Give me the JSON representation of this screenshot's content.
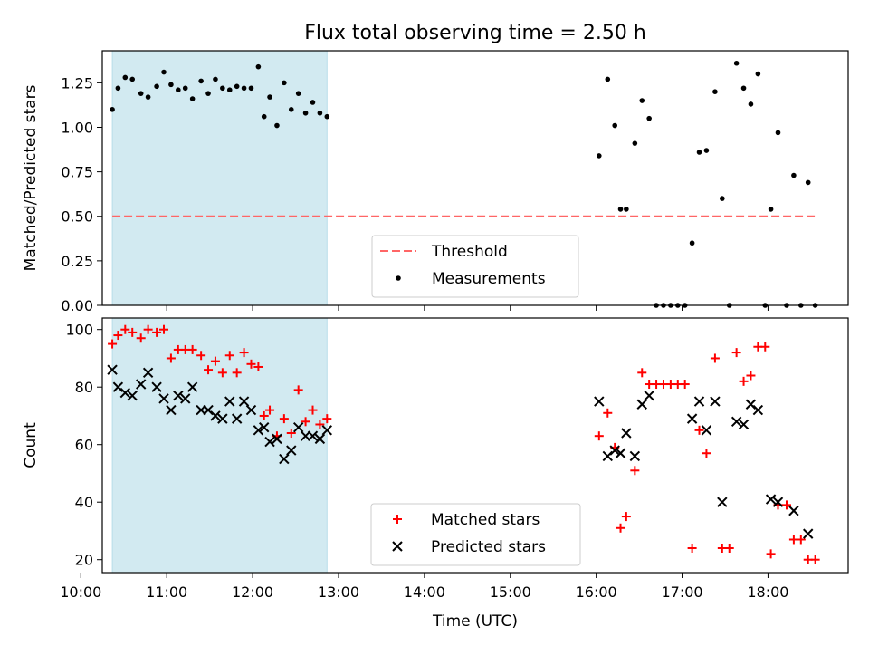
{
  "figure": {
    "title": "Flux total observing time = 2.50 h",
    "xlabel": "Time (UTC)"
  },
  "chart_data": [
    {
      "type": "scatter",
      "ylabel": "Matched/Predicted stars",
      "xlim": [
        "10:15",
        "18:56"
      ],
      "ylim": [
        0,
        1.43
      ],
      "x_ticks": [
        "10:00",
        "11:00",
        "12:00",
        "13:00",
        "14:00",
        "15:00",
        "16:00",
        "17:00",
        "18:00"
      ],
      "y_ticks": [
        "0.00",
        "0.25",
        "0.50",
        "0.75",
        "1.00",
        "1.25"
      ],
      "shaded_span": {
        "x": [
          "10:22",
          "12:52"
        ],
        "color": "#add8e6"
      },
      "threshold": {
        "name": "Threshold",
        "y": 0.5,
        "x": [
          "10:22",
          "18:33"
        ],
        "color": "#ff6666"
      },
      "legend": {
        "position": "lower-center",
        "entries": [
          "Threshold",
          "Measurements"
        ]
      },
      "series": [
        {
          "name": "Measurements",
          "color": "#000000",
          "marker": "dot",
          "x": [
            "10:22",
            "10:26",
            "10:31",
            "10:36",
            "10:42",
            "10:47",
            "10:53",
            "10:58",
            "11:03",
            "11:08",
            "11:13",
            "11:18",
            "11:24",
            "11:29",
            "11:34",
            "11:39",
            "11:44",
            "11:49",
            "11:54",
            "11:59",
            "12:04",
            "12:08",
            "12:12",
            "12:17",
            "12:22",
            "12:27",
            "12:32",
            "12:37",
            "12:42",
            "12:47",
            "12:52",
            "16:02",
            "16:08",
            "16:13",
            "16:17",
            "16:21",
            "16:27",
            "16:32",
            "16:37",
            "16:42",
            "16:47",
            "16:52",
            "16:57",
            "17:02",
            "17:07",
            "17:12",
            "17:17",
            "17:23",
            "17:28",
            "17:33",
            "17:38",
            "17:43",
            "17:48",
            "17:53",
            "17:58",
            "18:02",
            "18:07",
            "18:13",
            "18:18",
            "18:23",
            "18:28",
            "18:33"
          ],
          "y": [
            1.1,
            1.22,
            1.28,
            1.27,
            1.19,
            1.17,
            1.23,
            1.31,
            1.24,
            1.21,
            1.22,
            1.16,
            1.26,
            1.19,
            1.27,
            1.22,
            1.21,
            1.23,
            1.22,
            1.22,
            1.34,
            1.06,
            1.17,
            1.01,
            1.25,
            1.1,
            1.19,
            1.08,
            1.14,
            1.08,
            1.06,
            0.84,
            1.27,
            1.01,
            0.54,
            0.54,
            0.91,
            1.15,
            1.05,
            0,
            0,
            0,
            0,
            0,
            0.35,
            0.86,
            0.87,
            1.2,
            0.6,
            0,
            1.36,
            1.22,
            1.13,
            1.3,
            0,
            0.54,
            0.97,
            0,
            0.73,
            0,
            0.69,
            0
          ]
        }
      ]
    },
    {
      "type": "scatter",
      "ylabel": "Count",
      "xlim": [
        "10:15",
        "18:56"
      ],
      "ylim": [
        15.5,
        104
      ],
      "x_ticks": [
        "10:00",
        "11:00",
        "12:00",
        "13:00",
        "14:00",
        "15:00",
        "16:00",
        "17:00",
        "18:00"
      ],
      "y_ticks": [
        "20",
        "40",
        "60",
        "80",
        "100"
      ],
      "shaded_span": {
        "x": [
          "10:22",
          "12:52"
        ],
        "color": "#add8e6"
      },
      "legend": {
        "position": "lower-center",
        "entries": [
          "Matched stars",
          "Predicted stars"
        ]
      },
      "series": [
        {
          "name": "Matched stars",
          "color": "#ff0000",
          "marker": "plus",
          "x": [
            "10:22",
            "10:26",
            "10:31",
            "10:36",
            "10:42",
            "10:47",
            "10:53",
            "10:58",
            "11:03",
            "11:08",
            "11:13",
            "11:18",
            "11:24",
            "11:29",
            "11:34",
            "11:39",
            "11:44",
            "11:49",
            "11:54",
            "11:59",
            "12:04",
            "12:08",
            "12:12",
            "12:17",
            "12:22",
            "12:27",
            "12:32",
            "12:37",
            "12:42",
            "12:47",
            "12:52",
            "16:02",
            "16:08",
            "16:13",
            "16:17",
            "16:21",
            "16:27",
            "16:32",
            "16:37",
            "16:42",
            "16:47",
            "16:52",
            "16:57",
            "17:02",
            "17:07",
            "17:12",
            "17:17",
            "17:23",
            "17:28",
            "17:33",
            "17:38",
            "17:43",
            "17:48",
            "17:53",
            "17:58",
            "18:02",
            "18:07",
            "18:13",
            "18:18",
            "18:23",
            "18:28",
            "18:33"
          ],
          "y": [
            95,
            98,
            100,
            99,
            97,
            100,
            99,
            100,
            90,
            93,
            93,
            93,
            91,
            86,
            89,
            85,
            91,
            85,
            92,
            88,
            87,
            70,
            72,
            63,
            69,
            64,
            79,
            68,
            72,
            67,
            69,
            63,
            71,
            59,
            31,
            35,
            51,
            85,
            81,
            81,
            81,
            81,
            81,
            81,
            24,
            65,
            57,
            90,
            24,
            24,
            92,
            82,
            84,
            94,
            94,
            22,
            39,
            39,
            27,
            27,
            20,
            20
          ]
        },
        {
          "name": "Predicted stars",
          "color": "#000000",
          "marker": "x",
          "x": [
            "10:22",
            "10:26",
            "10:31",
            "10:36",
            "10:42",
            "10:47",
            "10:53",
            "10:58",
            "11:03",
            "11:08",
            "11:13",
            "11:18",
            "11:24",
            "11:29",
            "11:34",
            "11:39",
            "11:44",
            "11:49",
            "11:54",
            "11:59",
            "12:04",
            "12:08",
            "12:12",
            "12:17",
            "12:22",
            "12:27",
            "12:32",
            "12:37",
            "12:42",
            "12:47",
            "12:52",
            "16:02",
            "16:08",
            "16:13",
            "16:17",
            "16:21",
            "16:27",
            "16:32",
            "16:37",
            "16:42",
            "16:47",
            "16:52",
            "16:57",
            "17:02",
            "17:07",
            "17:12",
            "17:17",
            "17:23",
            "17:28",
            "17:33",
            "17:38",
            "17:43",
            "17:48",
            "17:53",
            "17:58",
            "18:02",
            "18:07",
            "18:13",
            "18:18",
            "18:23",
            "18:28",
            "18:33"
          ],
          "y": [
            86,
            80,
            78,
            77,
            81,
            85,
            80,
            76,
            72,
            77,
            76,
            80,
            72,
            72,
            70,
            69,
            75,
            69,
            75,
            72,
            65,
            66,
            61,
            62,
            55,
            58,
            66,
            63,
            63,
            62,
            65,
            75,
            56,
            58,
            57,
            64,
            56,
            74,
            77,
            null,
            null,
            null,
            null,
            null,
            69,
            75,
            65,
            75,
            40,
            null,
            68,
            67,
            74,
            72,
            null,
            41,
            40,
            null,
            37,
            null,
            29,
            null
          ]
        }
      ]
    }
  ]
}
